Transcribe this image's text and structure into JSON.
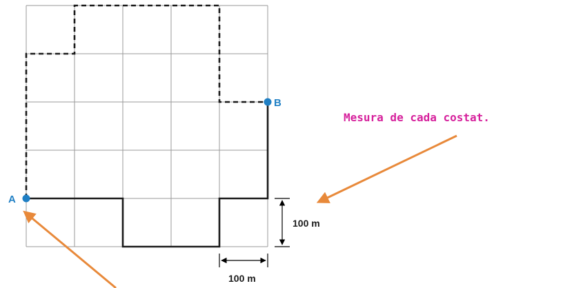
{
  "points": {
    "a": {
      "label": "A",
      "color": "#1f7fc4"
    },
    "b": {
      "label": "B",
      "color": "#1f7fc4"
    }
  },
  "dimensions": {
    "vertical_label": "100 m",
    "horizontal_label": "100 m"
  },
  "annotation": {
    "text": "Mesura de cada costat.",
    "color": "#d6219c"
  },
  "arrow_color": "#e8893a",
  "path_color": "#1a1a1a",
  "grid_color": "#9a9a9a"
}
